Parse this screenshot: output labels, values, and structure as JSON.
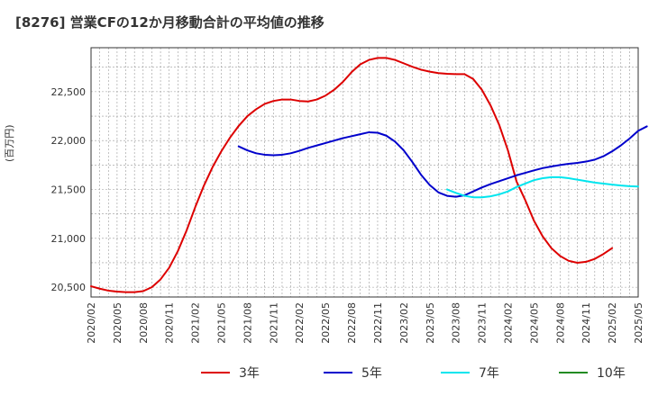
{
  "chart_data": {
    "type": "line",
    "title": "[8276]  営業CFの12か月移動合計の平均値の推移",
    "ylabel": "(百万円)",
    "ylim": [
      20400,
      22950
    ],
    "yticks": [
      20500,
      21000,
      21500,
      22000,
      22500
    ],
    "ytick_labels": [
      "20,500",
      "21,000",
      "21,500",
      "22,000",
      "22,500"
    ],
    "x_start": "2020-02",
    "x_end": "2025-05",
    "xtick_labels": [
      "2020/02",
      "2020/05",
      "2020/08",
      "2020/11",
      "2021/02",
      "2021/05",
      "2021/08",
      "2021/11",
      "2022/02",
      "2022/05",
      "2022/08",
      "2022/11",
      "2023/02",
      "2023/05",
      "2023/08",
      "2023/11",
      "2024/02",
      "2024/05",
      "2024/08",
      "2024/11",
      "2025/02",
      "2025/05"
    ],
    "grid": true,
    "legend_position": "bottom",
    "series": [
      {
        "name": "3年",
        "color": "#dd0000",
        "start": "2020-02",
        "values": [
          20510,
          20485,
          20465,
          20455,
          20450,
          20450,
          20460,
          20500,
          20580,
          20700,
          20870,
          21080,
          21320,
          21540,
          21730,
          21890,
          22030,
          22150,
          22250,
          22320,
          22375,
          22405,
          22420,
          22420,
          22405,
          22400,
          22420,
          22460,
          22520,
          22600,
          22700,
          22780,
          22825,
          22845,
          22845,
          22825,
          22790,
          22755,
          22725,
          22705,
          22690,
          22683,
          22680,
          22680,
          22630,
          22520,
          22360,
          22160,
          21900,
          21580,
          21390,
          21180,
          21020,
          20900,
          20820,
          20770,
          20750,
          20760,
          20790,
          20840,
          20900
        ]
      },
      {
        "name": "5年",
        "color": "#0000cc",
        "start": "2021-07",
        "values": [
          21940,
          21900,
          21870,
          21855,
          21850,
          21855,
          21870,
          21895,
          21925,
          21950,
          21975,
          22000,
          22025,
          22045,
          22065,
          22085,
          22080,
          22050,
          21990,
          21900,
          21780,
          21650,
          21545,
          21470,
          21435,
          21425,
          21440,
          21480,
          21520,
          21555,
          21585,
          21615,
          21645,
          21670,
          21695,
          21718,
          21735,
          21750,
          21762,
          21772,
          21785,
          21805,
          21840,
          21890,
          21950,
          22020,
          22100,
          22145
        ]
      },
      {
        "name": "7年",
        "color": "#00e5ee",
        "start": "2023-07",
        "values": [
          21500,
          21465,
          21435,
          21420,
          21420,
          21430,
          21450,
          21480,
          21525,
          21560,
          21595,
          21615,
          21625,
          21625,
          21615,
          21600,
          21585,
          21570,
          21560,
          21550,
          21540,
          21533,
          21530
        ]
      },
      {
        "name": "10年",
        "color": "#228b22",
        "start": "2025-02",
        "values": []
      }
    ]
  }
}
